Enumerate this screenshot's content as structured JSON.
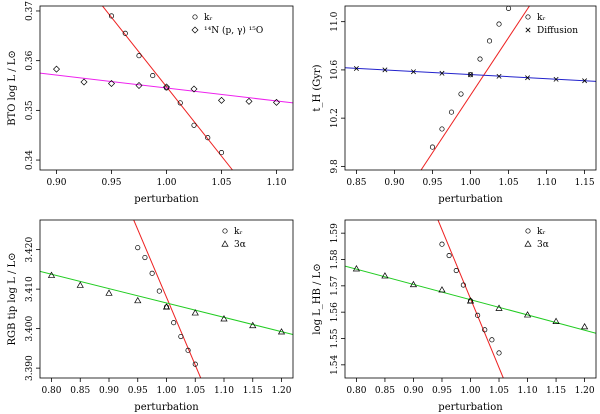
{
  "chart_data": [
    {
      "type": "scatter",
      "xlabel": "perturbation",
      "ylabel": "BTO log L / L⊙",
      "xlim": [
        0.885,
        1.115
      ],
      "ylim": [
        0.338,
        0.371
      ],
      "xticks": [
        0.9,
        0.95,
        1.0,
        1.05,
        1.1
      ],
      "xtick_labels": [
        "0.90",
        "0.95",
        "1.00",
        "1.05",
        "1.10"
      ],
      "yticks": [
        0.34,
        0.35,
        0.36,
        0.37
      ],
      "ytick_labels": [
        "0.34",
        "0.35",
        "0.36",
        "0.37"
      ],
      "legend_position": "top-right",
      "series": [
        {
          "name": "k_r",
          "label": "kᵣ",
          "marker": "circle",
          "line_color": "#ee2222",
          "x": [
            0.95,
            0.9625,
            0.975,
            0.9875,
            1.0,
            1.0125,
            1.025,
            1.0375,
            1.05
          ],
          "y": [
            0.369,
            0.3655,
            0.361,
            0.357,
            0.3545,
            0.3515,
            0.347,
            0.3445,
            0.3415
          ],
          "fit": [
            [
              0.94,
              0.3715
            ],
            [
              1.06,
              0.338
            ]
          ]
        },
        {
          "name": "14N(p,gamma)15O",
          "label": "¹⁴N (p, γ) ¹⁵O",
          "marker": "diamond",
          "line_color": "#ee22ee",
          "x": [
            0.9,
            0.925,
            0.95,
            0.975,
            1.0,
            1.025,
            1.05,
            1.075,
            1.1
          ],
          "y": [
            0.3583,
            0.3557,
            0.3554,
            0.355,
            0.3547,
            0.3543,
            0.352,
            0.3518,
            0.3516
          ],
          "fit": [
            [
              0.885,
              0.3575
            ],
            [
              1.115,
              0.3515
            ]
          ]
        }
      ]
    },
    {
      "type": "scatter",
      "xlabel": "perturbation",
      "ylabel": "t_H (Gyr)",
      "xlim": [
        0.835,
        1.165
      ],
      "ylim": [
        9.77,
        11.13
      ],
      "xticks": [
        0.85,
        0.9,
        0.95,
        1.0,
        1.05,
        1.1,
        1.15
      ],
      "xtick_labels": [
        "0.85",
        "0.90",
        "0.95",
        "1.00",
        "1.05",
        "1.10",
        "1.15"
      ],
      "yticks": [
        9.8,
        10.2,
        10.6,
        11.0
      ],
      "ytick_labels": [
        "9.8",
        "10.2",
        "10.6",
        "11.0"
      ],
      "legend_position": "top-right",
      "series": [
        {
          "name": "k_r",
          "label": "kᵣ",
          "marker": "circle",
          "line_color": "#ee2222",
          "x": [
            0.95,
            0.9625,
            0.975,
            0.9875,
            1.0,
            1.0125,
            1.025,
            1.0375,
            1.05
          ],
          "y": [
            9.96,
            10.11,
            10.25,
            10.4,
            10.56,
            10.69,
            10.84,
            10.98,
            11.11
          ],
          "fit": [
            [
              0.935,
              9.77
            ],
            [
              1.0775,
              11.13
            ]
          ]
        },
        {
          "name": "Diffusion",
          "label": "Diffusion",
          "marker": "cross",
          "line_color": "#2222cc",
          "x": [
            0.85,
            0.8875,
            0.925,
            0.9625,
            1.0,
            1.0375,
            1.075,
            1.1125,
            1.15
          ],
          "y": [
            10.612,
            10.6,
            10.585,
            10.572,
            10.56,
            10.547,
            10.535,
            10.522,
            10.51
          ],
          "fit": [
            [
              0.835,
              10.618
            ],
            [
              1.165,
              10.505
            ]
          ]
        }
      ]
    },
    {
      "type": "scatter",
      "xlabel": "perturbation",
      "ylabel": "RGB tip log L / L⊙",
      "xlim": [
        0.78,
        1.22
      ],
      "ylim": [
        3.3875,
        3.4275
      ],
      "xticks": [
        0.8,
        0.85,
        0.9,
        0.95,
        1.0,
        1.05,
        1.1,
        1.15,
        1.2
      ],
      "xtick_labels": [
        "0.80",
        "0.85",
        "0.90",
        "0.95",
        "1.00",
        "1.05",
        "1.10",
        "1.15",
        "1.20"
      ],
      "yticks": [
        3.39,
        3.4,
        3.41,
        3.42
      ],
      "ytick_labels": [
        "3.390",
        "3.400",
        "3.410",
        "3.420"
      ],
      "legend_position": "top-right",
      "series": [
        {
          "name": "k_r",
          "label": "kᵣ",
          "marker": "circle",
          "line_color": "#ee2222",
          "x": [
            0.95,
            0.9625,
            0.975,
            0.9875,
            1.0,
            1.0125,
            1.025,
            1.0375,
            1.05
          ],
          "y": [
            3.4205,
            3.418,
            3.414,
            3.4095,
            3.4055,
            3.4015,
            3.398,
            3.3945,
            3.391
          ],
          "fit": [
            [
              0.943,
              3.4275
            ],
            [
              1.0595,
              3.3875
            ]
          ]
        },
        {
          "name": "3alpha",
          "label": "3α",
          "marker": "triangle",
          "line_color": "#22cc22",
          "x": [
            0.8,
            0.85,
            0.9,
            0.95,
            1.0,
            1.05,
            1.1,
            1.15,
            1.2
          ],
          "y": [
            3.4135,
            3.411,
            3.409,
            3.4071,
            3.4055,
            3.404,
            3.4025,
            3.4008,
            3.3992
          ],
          "fit": [
            [
              0.78,
              3.4145
            ],
            [
              1.22,
              3.3985
            ]
          ]
        }
      ]
    },
    {
      "type": "scatter",
      "xlabel": "perturbation",
      "ylabel": "log L_HB / L⊙",
      "xlim": [
        0.78,
        1.22
      ],
      "ylim": [
        1.535,
        1.595
      ],
      "xticks": [
        0.8,
        0.85,
        0.9,
        0.95,
        1.0,
        1.05,
        1.1,
        1.15,
        1.2
      ],
      "xtick_labels": [
        "0.80",
        "0.85",
        "0.90",
        "0.95",
        "1.00",
        "1.05",
        "1.10",
        "1.15",
        "1.20"
      ],
      "yticks": [
        1.54,
        1.55,
        1.56,
        1.57,
        1.58,
        1.59
      ],
      "ytick_labels": [
        "1.54",
        "1.55",
        "1.56",
        "1.57",
        "1.58",
        "1.59"
      ],
      "legend_position": "top-right",
      "series": [
        {
          "name": "k_r",
          "label": "kᵣ",
          "marker": "circle",
          "line_color": "#ee2222",
          "x": [
            0.95,
            0.9625,
            0.975,
            0.9875,
            1.0,
            1.0125,
            1.025,
            1.0375,
            1.05
          ],
          "y": [
            1.5858,
            1.5815,
            1.5758,
            1.5703,
            1.5643,
            1.5588,
            1.5533,
            1.5495,
            1.5445
          ],
          "fit": [
            [
              0.943,
              1.595
            ],
            [
              1.0575,
              1.535
            ]
          ]
        },
        {
          "name": "3alpha",
          "label": "3α",
          "marker": "triangle",
          "line_color": "#22cc22",
          "x": [
            0.8,
            0.85,
            0.9,
            0.95,
            1.0,
            1.05,
            1.1,
            1.15,
            1.2
          ],
          "y": [
            1.5765,
            1.5738,
            1.5705,
            1.5685,
            1.5643,
            1.5615,
            1.559,
            1.5565,
            1.5545
          ],
          "fit": [
            [
              0.78,
              1.5775
            ],
            [
              1.22,
              1.552
            ]
          ]
        }
      ]
    }
  ]
}
